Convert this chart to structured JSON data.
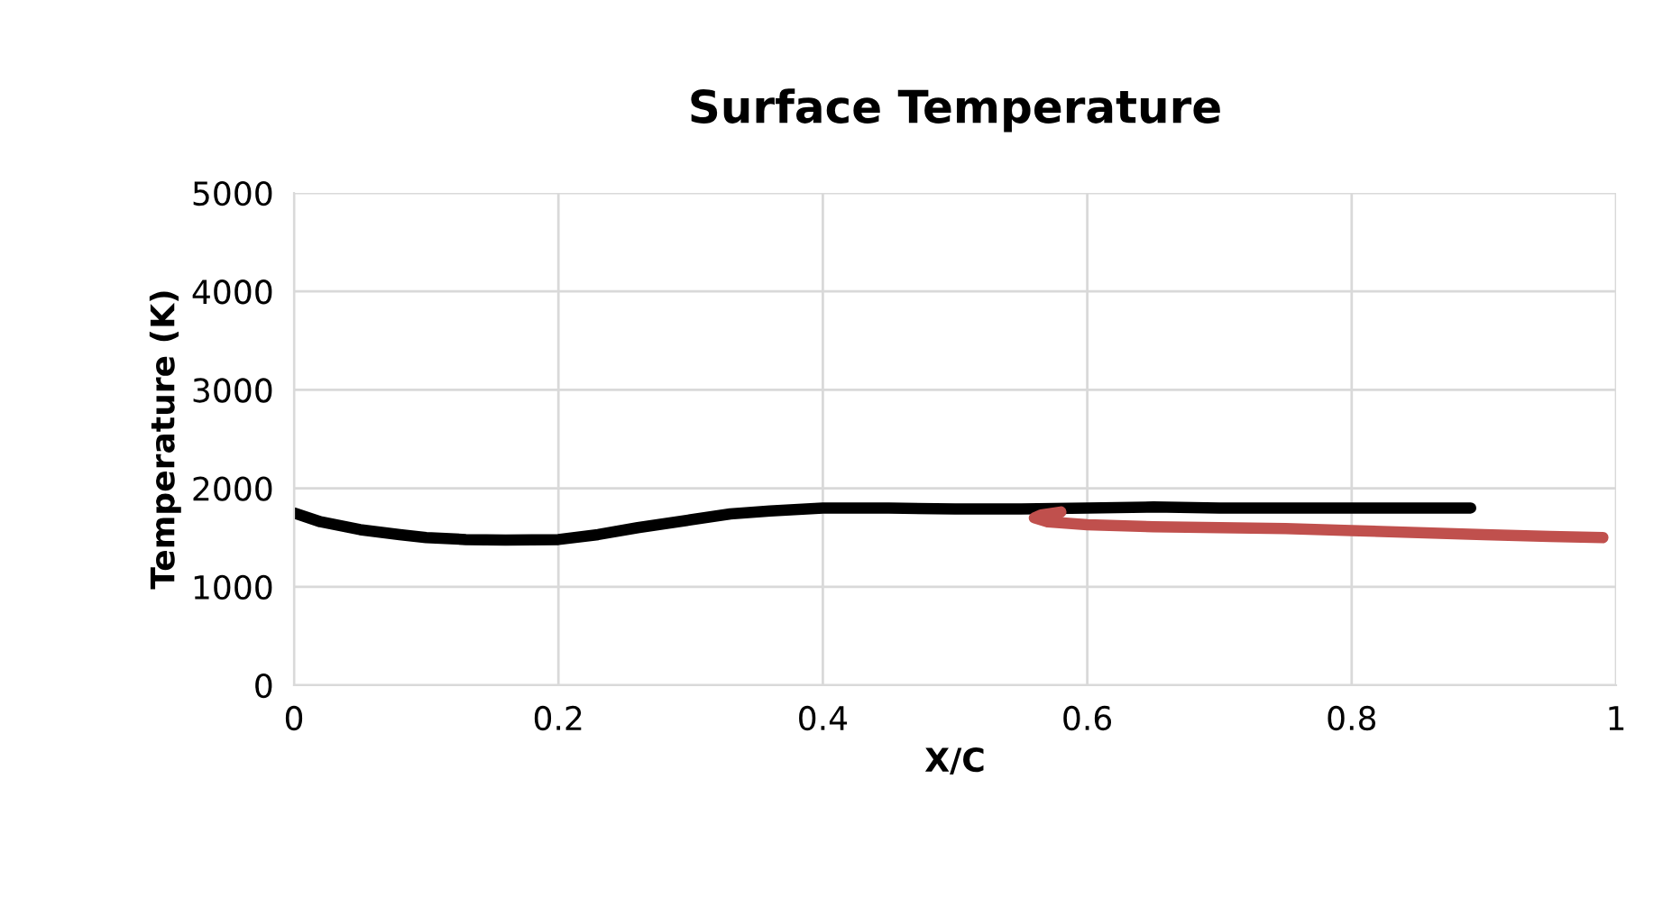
{
  "chart_data": {
    "type": "line",
    "title": "Surface Temperature",
    "xlabel": "X/C",
    "ylabel": "Temperature (K)",
    "xlim": [
      0,
      1
    ],
    "xticks": [
      0,
      0.2,
      0.4,
      0.6,
      0.8,
      1
    ],
    "ylim": [
      0,
      5000
    ],
    "yticks": [
      0,
      1000,
      2000,
      3000,
      4000,
      5000
    ],
    "grid": true,
    "marker": "none",
    "line_style": "solid",
    "series": [
      {
        "color": "#000000",
        "x": [
          0,
          0.02,
          0.05,
          0.08,
          0.1,
          0.13,
          0.16,
          0.2,
          0.23,
          0.26,
          0.3,
          0.33,
          0.36,
          0.4,
          0.45,
          0.5,
          0.55,
          0.6,
          0.65,
          0.7,
          0.8,
          0.89
        ],
        "values": [
          1750,
          1660,
          1580,
          1530,
          1500,
          1480,
          1475,
          1480,
          1530,
          1600,
          1680,
          1740,
          1770,
          1800,
          1800,
          1790,
          1790,
          1800,
          1810,
          1800,
          1800,
          1800
        ]
      },
      {
        "color": "#c0504d",
        "x": [
          0.58,
          0.565,
          0.56,
          0.57,
          0.6,
          0.65,
          0.7,
          0.75,
          0.8,
          0.85,
          0.9,
          0.95,
          0.99
        ],
        "values": [
          1760,
          1730,
          1700,
          1660,
          1630,
          1610,
          1600,
          1590,
          1570,
          1550,
          1530,
          1510,
          1500
        ]
      }
    ]
  }
}
